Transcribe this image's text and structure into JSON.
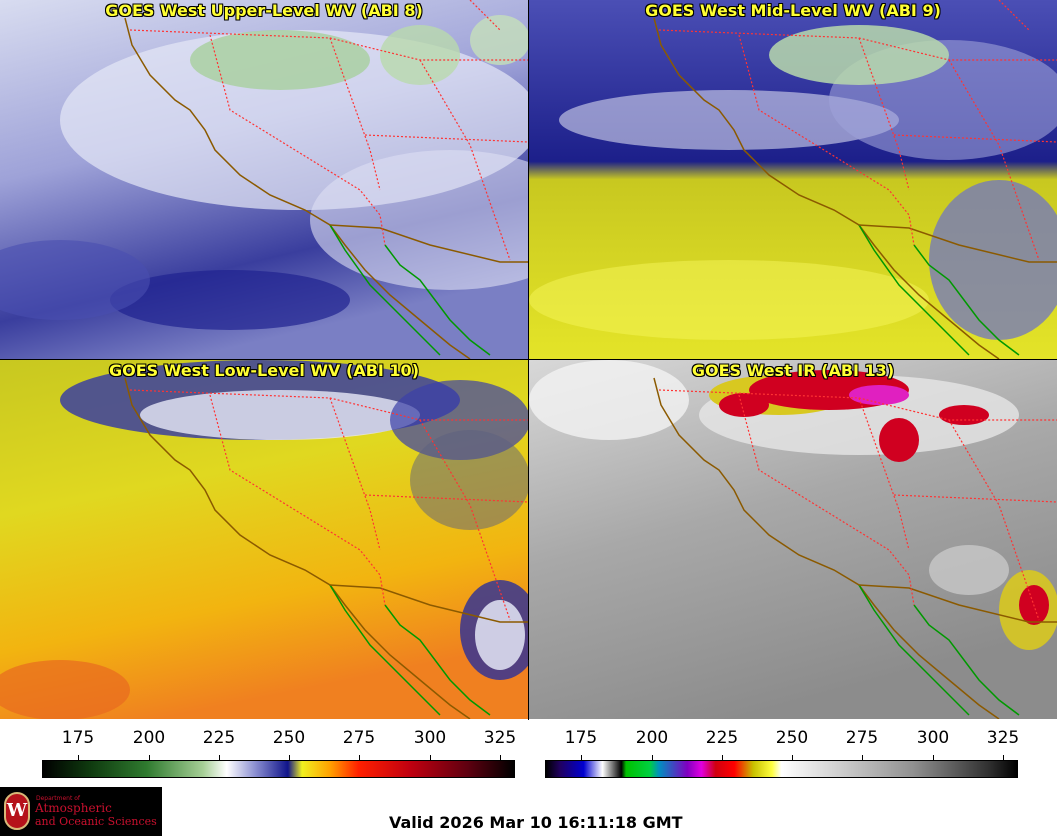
{
  "panels": [
    {
      "title": "GOES West Upper-Level WV (ABI 8)",
      "theme": "upper"
    },
    {
      "title": "GOES West Mid-Level WV (ABI 9)",
      "theme": "mid"
    },
    {
      "title": "GOES West Low-Level WV (ABI 10)",
      "theme": "low"
    },
    {
      "title": "GOES West IR (ABI 13)",
      "theme": "ir"
    }
  ],
  "colorbars": {
    "left": {
      "ticks": [
        "175",
        "200",
        "225",
        "250",
        "275",
        "300",
        "325"
      ]
    },
    "right": {
      "ticks": [
        "175",
        "200",
        "225",
        "250",
        "275",
        "300",
        "325"
      ]
    }
  },
  "colors": {
    "title": "#ffff33",
    "coast": "#8b5a00",
    "coast_green": "#009900",
    "borders": "#ff3333"
  },
  "logo": {
    "line1": "Department of",
    "line2": "Atmospheric",
    "line3": "and Oceanic Sciences",
    "crest_letter": "W"
  },
  "footer": {
    "valid": "Valid 2026 Mar 10 16:11:18 GMT"
  }
}
